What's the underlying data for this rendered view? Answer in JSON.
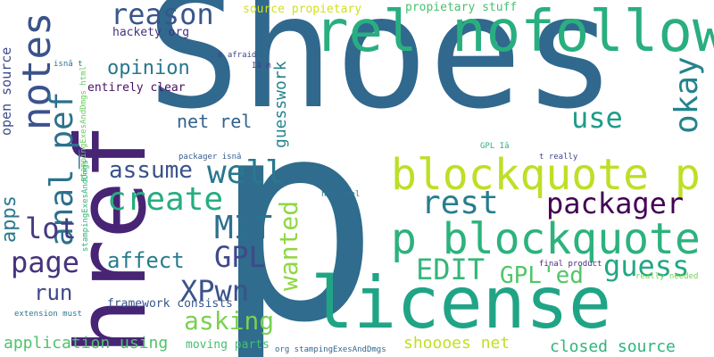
{
  "words": [
    {
      "text": "Shoes",
      "color": "#31688e"
    },
    {
      "text": "p",
      "color": "#2f6c8e"
    },
    {
      "text": "href",
      "color": "#482475"
    },
    {
      "text": "license",
      "color": "#20a486"
    },
    {
      "text": "rel nofollow",
      "color": "#29af7f"
    },
    {
      "text": "p blockquote",
      "color": "#2db27d"
    },
    {
      "text": "blockquote p",
      "color": "#bddf26"
    },
    {
      "text": "notes",
      "color": "#3b528b"
    },
    {
      "text": "anal_pef",
      "color": "#2c718e"
    },
    {
      "text": "reason",
      "color": "#39568c"
    },
    {
      "text": "okay",
      "color": "#25838e"
    },
    {
      "text": "use",
      "color": "#1e9c89"
    },
    {
      "text": "create",
      "color": "#26ad81"
    },
    {
      "text": "well",
      "color": "#2a788e"
    },
    {
      "text": "assume",
      "color": "#3b528b"
    },
    {
      "text": "rest",
      "color": "#287d8e"
    },
    {
      "text": "packager",
      "color": "#440154"
    },
    {
      "text": "guess",
      "color": "#22a785"
    },
    {
      "text": "EDIT",
      "color": "#35b779"
    },
    {
      "text": "GPL'ed",
      "color": "#52c569"
    },
    {
      "text": "MIT",
      "color": "#2d708e"
    },
    {
      "text": "GPL",
      "color": "#3e4a89"
    },
    {
      "text": "XPwn",
      "color": "#3b528b"
    },
    {
      "text": "asking",
      "color": "#7ad151"
    },
    {
      "text": "page",
      "color": "#46337e"
    },
    {
      "text": "lot",
      "color": "#443a83"
    },
    {
      "text": "affect",
      "color": "#287c8e"
    },
    {
      "text": "run",
      "color": "#3f4788"
    },
    {
      "text": "wanted",
      "color": "#8fd744"
    },
    {
      "text": "apps",
      "color": "#2a788e"
    },
    {
      "text": "opinion",
      "color": "#2a768e"
    },
    {
      "text": "guesswork",
      "color": "#25848e"
    },
    {
      "text": "net rel",
      "color": "#34618d"
    },
    {
      "text": "open source",
      "color": "#3e4c8a"
    },
    {
      "text": "entirely clear",
      "color": "#471164"
    },
    {
      "text": "hackety org",
      "color": "#46327e"
    },
    {
      "text": "source propietary",
      "color": "#d0e11c"
    },
    {
      "text": "propietary stuff",
      "color": "#48c16e"
    },
    {
      "text": "application using",
      "color": "#4ec36b"
    },
    {
      "text": "moving parts",
      "color": "#44bf70"
    },
    {
      "text": "closed source",
      "color": "#2fb47c"
    },
    {
      "text": "shoooes net",
      "color": "#c2df23"
    },
    {
      "text": "framework consists",
      "color": "#39568c"
    },
    {
      "text": "stampingExesAndDmgs html",
      "color": "#67cc5c"
    },
    {
      "text": "stampingExesAndDmgs",
      "color": "#2fb47c"
    },
    {
      "text": "org stampingExesAndDmgs",
      "color": "#31688e"
    },
    {
      "text": "m afraid",
      "color": "#414487"
    },
    {
      "text": "Iâ m",
      "color": "#423f85"
    },
    {
      "text": "isnâ t",
      "color": "#2c728e"
    },
    {
      "text": "packager isnâ",
      "color": "#365d8d"
    },
    {
      "text": "GPL Iâ",
      "color": "#2db27d"
    },
    {
      "text": "t really",
      "color": "#3e4989"
    },
    {
      "text": "html rel",
      "color": "#2a768e"
    },
    {
      "text": "final product",
      "color": "#482878"
    },
    {
      "text": "really needed",
      "color": "#75d054"
    },
    {
      "text": "extension must",
      "color": "#2a788e"
    }
  ]
}
